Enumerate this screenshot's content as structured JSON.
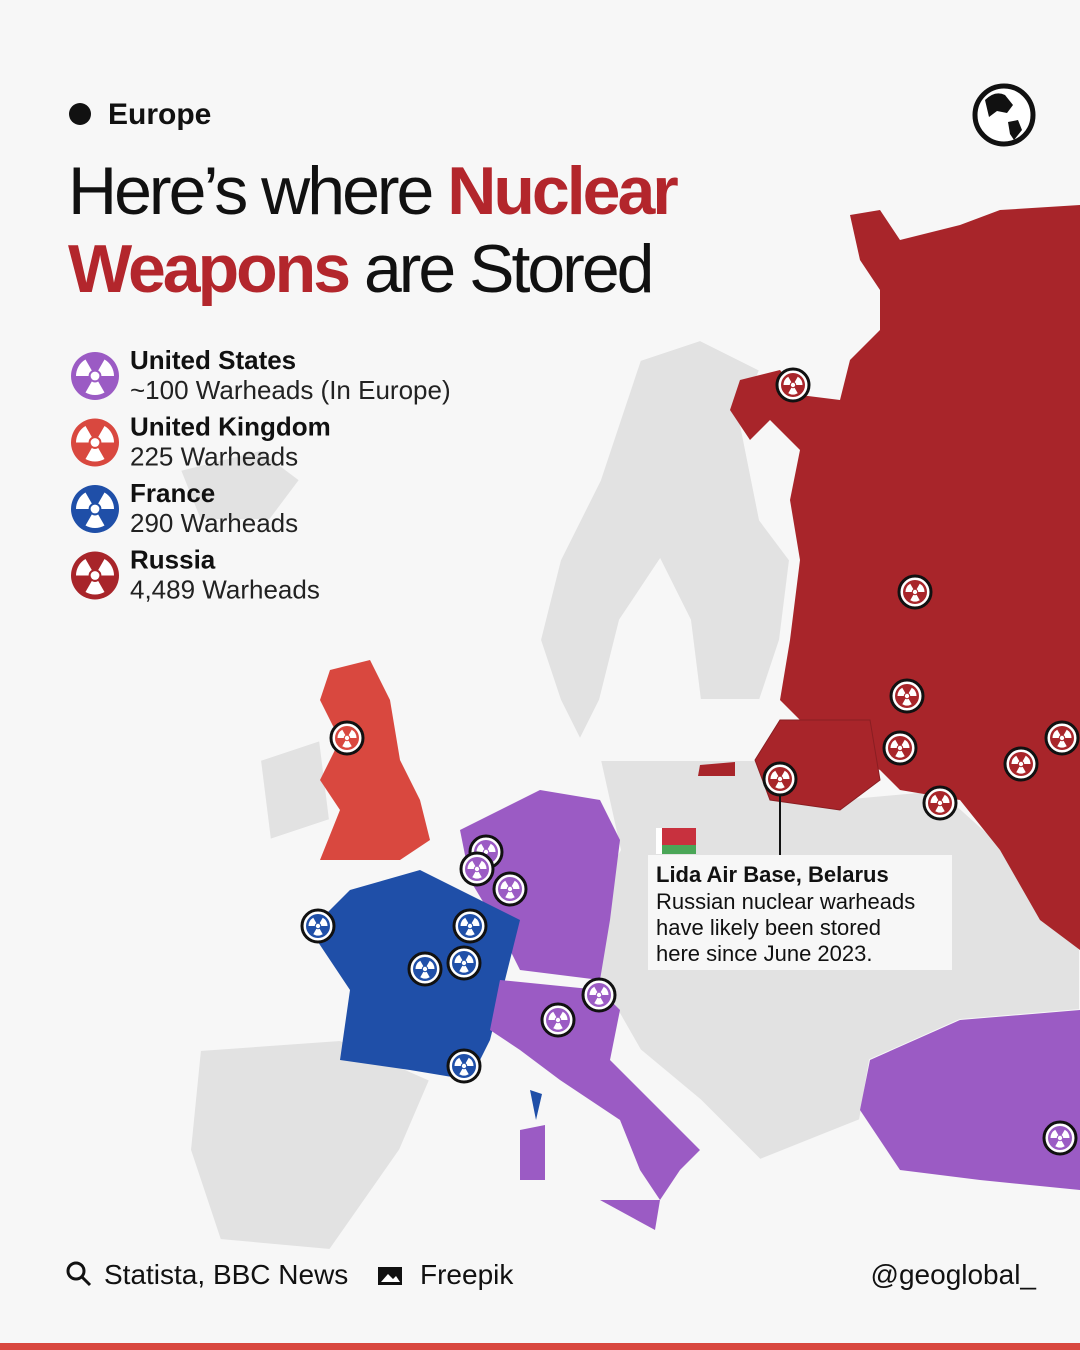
{
  "header": {
    "region": "Europe",
    "title_line1": "Here’s where",
    "title_highlight1": "Nuclear",
    "title_highlight2": "Weapons",
    "title_line2": "are Stored"
  },
  "legend": [
    {
      "country": "United States",
      "detail": "~100 Warheads (In Europe)",
      "color": "#9b5bc4"
    },
    {
      "country": "United Kingdom",
      "detail": "225 Warheads",
      "color": "#d9483f"
    },
    {
      "country": "France",
      "detail": "290 Warheads",
      "color": "#1f4fa8"
    },
    {
      "country": "Russia",
      "detail": "4,489 Warheads",
      "color": "#a8252a"
    }
  ],
  "callout": {
    "title": "Lida Air Base, Belarus",
    "lines": [
      "Russian nuclear warheads",
      "have likely been stored",
      "here since June 2023."
    ]
  },
  "footer": {
    "sources": "Statista, BBC News",
    "image_credit": "Freepik",
    "handle": "@geoglobal_"
  }
}
